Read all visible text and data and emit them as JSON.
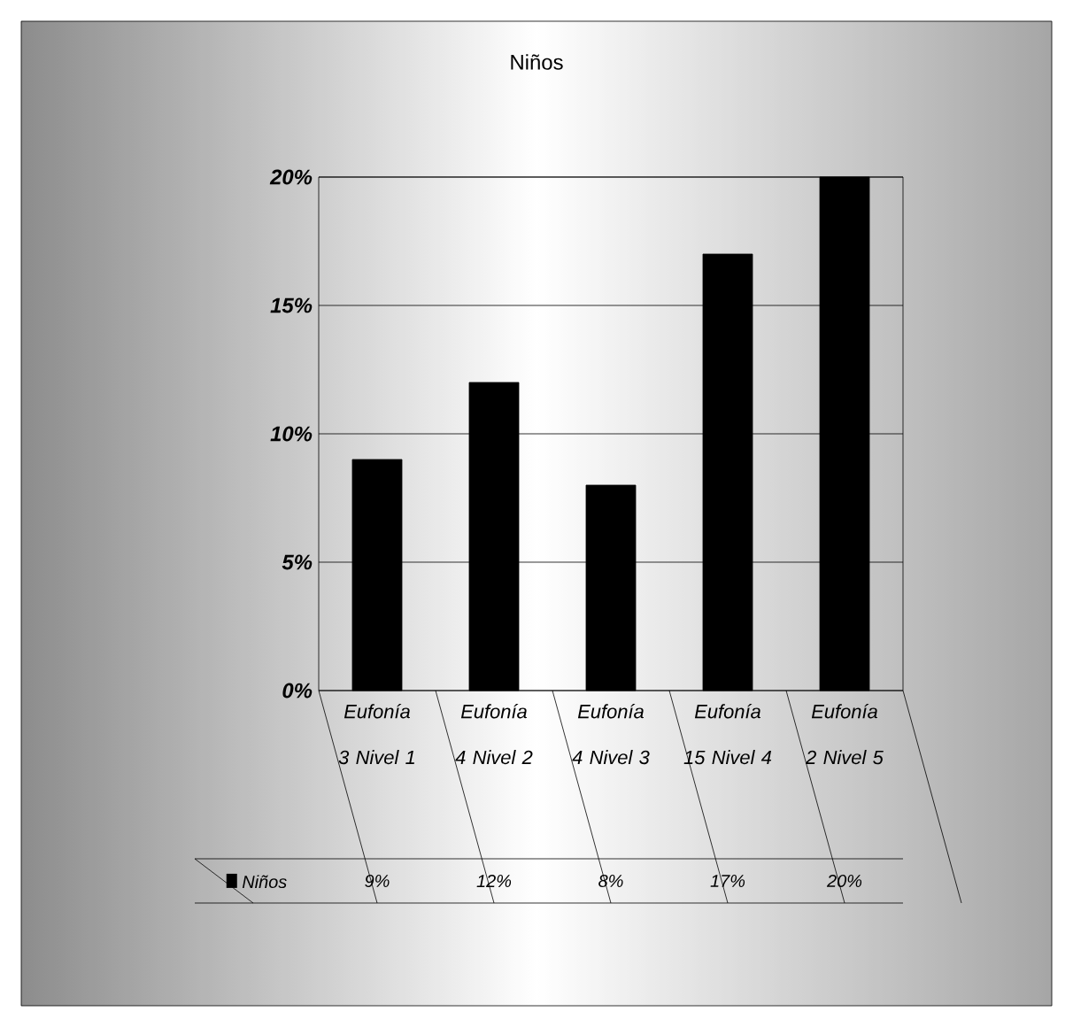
{
  "chart_data": {
    "type": "bar",
    "title": "Niños",
    "categories": [
      "Eufonía 3 Nivel 1",
      "Eufonía 4 Nivel 2",
      "Eufonía 4 Nivel 3",
      "Eufonía 15 Nivel 4",
      "Eufonía 2 Nivel 5"
    ],
    "series": [
      {
        "name": "Niños",
        "color": "#000000",
        "values": [
          9,
          12,
          8,
          17,
          20
        ],
        "value_labels": [
          "9%",
          "12%",
          "8%",
          "17%",
          "20%"
        ]
      }
    ],
    "ylim": [
      0,
      20
    ],
    "yticks": [
      {
        "value": 0,
        "label": "0%"
      },
      {
        "value": 5,
        "label": "5%"
      },
      {
        "value": 10,
        "label": "10%"
      },
      {
        "value": 15,
        "label": "15%"
      },
      {
        "value": 20,
        "label": "20%"
      }
    ],
    "grid": "y",
    "legend": "bottom"
  }
}
